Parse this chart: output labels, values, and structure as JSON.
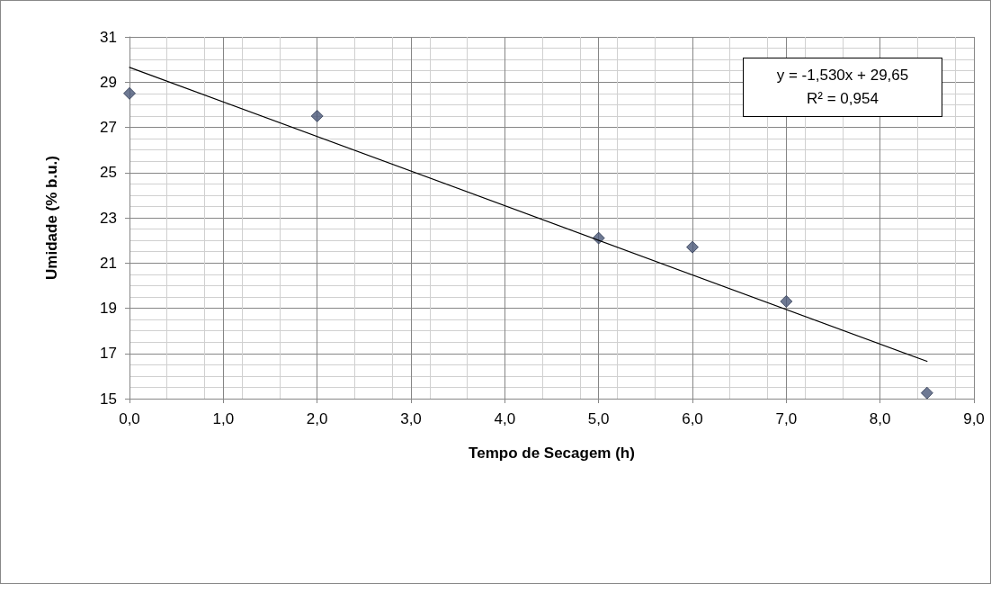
{
  "chart_data": {
    "type": "scatter",
    "xlabel": "Tempo de Secagem (h)",
    "ylabel": "Umidade (% b.u.)",
    "annotations": [
      "y = -1,530x + 29,65",
      "R² = 0,954"
    ],
    "x": [
      0,
      2,
      5,
      6,
      7,
      8.5
    ],
    "series": [
      {
        "color": "#4a5878",
        "values": [
          28.5,
          27.5,
          22.1,
          21.7,
          19.3,
          15.25
        ]
      },
      {
        "type": "line",
        "color": "#000000",
        "x": [
          0,
          8.5
        ],
        "values": [
          29.65,
          16.65
        ],
        "marker": "none",
        "line_style": "solid"
      }
    ],
    "marker": "diamond",
    "xlim": [
      0,
      9
    ],
    "xticks": [
      {
        "value": 0,
        "label": "0,0"
      },
      {
        "value": 1,
        "label": "1,0"
      },
      {
        "value": 2,
        "label": "2,0"
      },
      {
        "value": 3,
        "label": "3,0"
      },
      {
        "value": 4,
        "label": "4,0"
      },
      {
        "value": 5,
        "label": "5,0"
      },
      {
        "value": 6,
        "label": "6,0"
      },
      {
        "value": 7,
        "label": "7,0"
      },
      {
        "value": 8,
        "label": "8,0"
      },
      {
        "value": 9,
        "label": "9,0"
      }
    ],
    "ylim": [
      15,
      31
    ],
    "yticks": [
      15,
      17,
      19,
      21,
      23,
      25,
      27,
      29,
      31
    ],
    "grid": true
  }
}
